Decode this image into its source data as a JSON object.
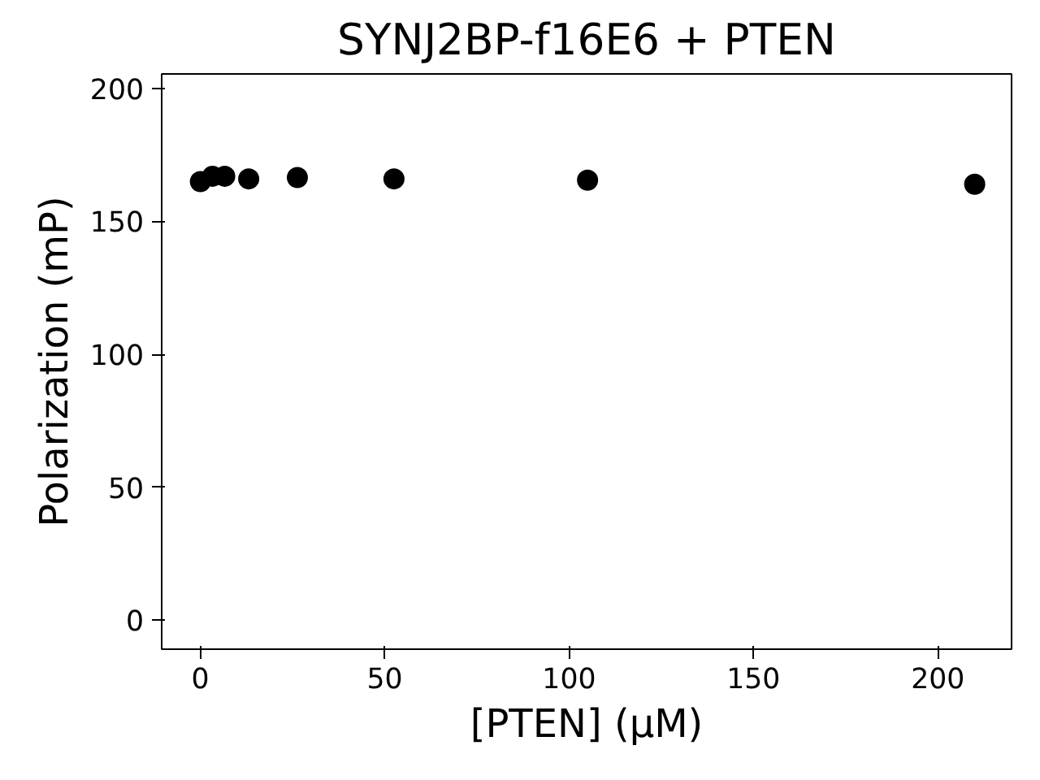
{
  "chart_data": {
    "type": "scatter",
    "title": "SYNJ2BP-f16E6 + PTEN",
    "xlabel": "[PTEN] (µM)",
    "ylabel": "Polarization (mP)",
    "x": [
      0,
      3.3,
      6.6,
      13.1,
      26.3,
      52.5,
      105,
      210
    ],
    "series": [
      {
        "color": "#000000",
        "values": [
          165,
          167,
          167,
          166,
          166.5,
          166,
          165.5,
          164
        ]
      }
    ],
    "xlim": [
      -10.5,
      220
    ],
    "ylim": [
      -11,
      205.5
    ],
    "xticks": [
      0,
      50,
      100,
      150,
      200
    ],
    "yticks": [
      0,
      50,
      100,
      150,
      200
    ],
    "marker": "circle",
    "grid": false
  }
}
